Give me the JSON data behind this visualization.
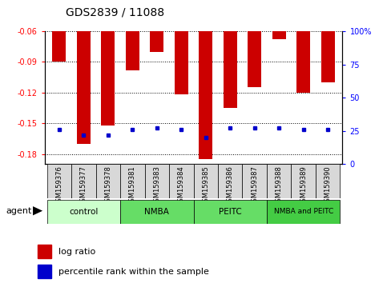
{
  "title": "GDS2839 / 11088",
  "categories": [
    "GSM159376",
    "GSM159377",
    "GSM159378",
    "GSM159381",
    "GSM159383",
    "GSM159384",
    "GSM159385",
    "GSM159386",
    "GSM159387",
    "GSM159388",
    "GSM159389",
    "GSM159390"
  ],
  "log_ratios": [
    -0.09,
    -0.17,
    -0.152,
    -0.098,
    -0.08,
    -0.122,
    -0.185,
    -0.135,
    -0.115,
    -0.068,
    -0.12,
    -0.11
  ],
  "percentile_ranks": [
    26,
    22,
    22,
    26,
    27,
    26,
    20,
    27,
    27,
    27,
    26,
    26
  ],
  "bar_color": "#cc0000",
  "dot_color": "#0000cc",
  "ylim_left": [
    -0.19,
    -0.06
  ],
  "ylim_right": [
    0,
    100
  ],
  "yticks_left": [
    -0.18,
    -0.15,
    -0.12,
    -0.09,
    -0.06
  ],
  "yticks_right": [
    0,
    25,
    50,
    75,
    100
  ],
  "ytick_labels_left": [
    "-0.18",
    "-0.15",
    "-0.12",
    "-0.09",
    "-0.06"
  ],
  "ytick_labels_right": [
    "0",
    "25",
    "50",
    "75",
    "100%"
  ],
  "groups_info": [
    {
      "label": "control",
      "start": 0,
      "end": 2,
      "color": "#ccffcc"
    },
    {
      "label": "NMBA",
      "start": 3,
      "end": 5,
      "color": "#66dd66"
    },
    {
      "label": "PEITC",
      "start": 6,
      "end": 8,
      "color": "#66dd66"
    },
    {
      "label": "NMBA and PEITC",
      "start": 9,
      "end": 11,
      "color": "#44cc44"
    }
  ],
  "agent_label": "agent",
  "legend_log_ratio": "log ratio",
  "legend_percentile": "percentile rank within the sample"
}
